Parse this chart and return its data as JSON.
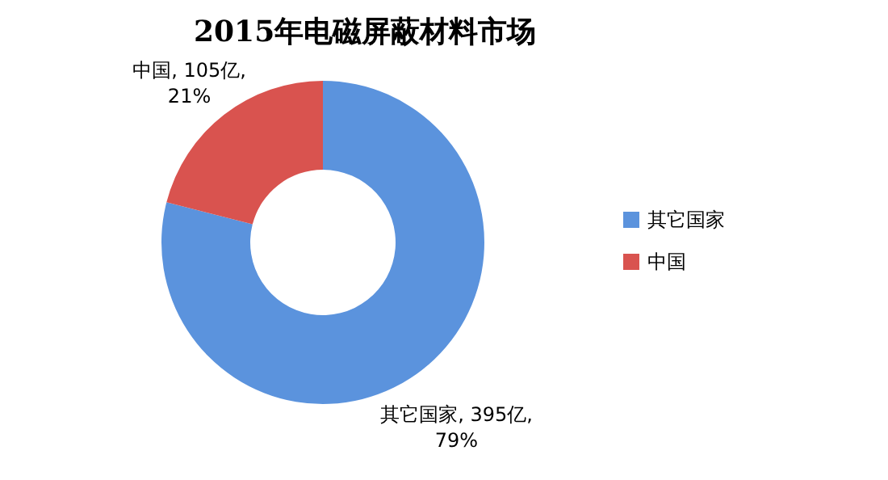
{
  "chart_data": {
    "type": "donut",
    "title": "2015年电磁屏蔽材料市场",
    "categories": [
      "其它国家",
      "中国"
    ],
    "values": [
      395,
      105
    ],
    "colors": [
      "#5b93dd",
      "#d9534f"
    ],
    "value_labels": [
      "其它国家, 395亿, 79%",
      "中国, 105亿, 21%"
    ],
    "legend": "right"
  }
}
